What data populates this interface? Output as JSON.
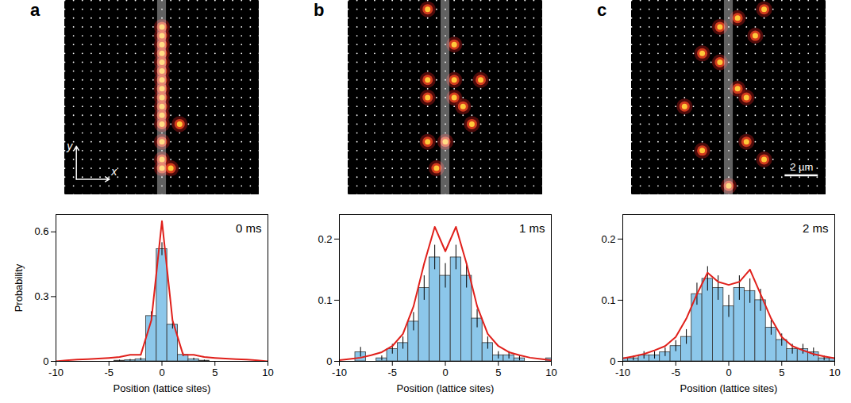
{
  "chart_data": [
    {
      "type": "histogram",
      "panel": "a",
      "annotation": "0 ms",
      "x_label": "Position (lattice sites)",
      "y_label": "Probability",
      "color": "#8cc7ea",
      "bins": [
        -10.5,
        -9.5,
        -8.5,
        -7.5,
        -6.5,
        -5.5,
        -4.5,
        -3.5,
        -2.5,
        -1.5,
        -0.5,
        0.5,
        1.5,
        2.5,
        3.5,
        4.5,
        5.5,
        6.5,
        7.5,
        8.5,
        9.5,
        10.5
      ],
      "counts": [
        0,
        0,
        0,
        0,
        0,
        0,
        0.003,
        0.005,
        0.01,
        0.21,
        0.52,
        0.17,
        0.03,
        0.01,
        0.003,
        0,
        0,
        0,
        0,
        0,
        0
      ],
      "errors": [
        0,
        0,
        0,
        0,
        0,
        0,
        0.003,
        0.004,
        0.006,
        0.02,
        0.03,
        0.02,
        0.008,
        0.005,
        0.003,
        0,
        0,
        0,
        0,
        0,
        0
      ],
      "theory": {
        "color": "#e0201b",
        "x": [
          -10,
          -9,
          -8,
          -7,
          -6,
          -5,
          -4,
          -3,
          -2,
          -1,
          0,
          1,
          2,
          3,
          4,
          5,
          6,
          7,
          8,
          9,
          10
        ],
        "values": [
          0,
          0.005,
          0.008,
          0.01,
          0.013,
          0.016,
          0.02,
          0.03,
          0.03,
          0.19,
          0.65,
          0.19,
          0.03,
          0.03,
          0.02,
          0.016,
          0.013,
          0.01,
          0.008,
          0.005,
          0
        ]
      },
      "xlim": [
        -10,
        10
      ],
      "xticks": [
        -10,
        -5,
        0,
        5,
        10
      ],
      "ylim": [
        0,
        0.68
      ],
      "yticks": [
        0,
        0.3,
        0.6
      ],
      "image": {
        "xlim": [
          -11,
          11
        ],
        "ylim": [
          -11,
          11
        ],
        "stripe_x": 0,
        "axis_labels": [
          "x",
          "y"
        ],
        "atoms": [
          [
            0,
            8
          ],
          [
            0,
            7
          ],
          [
            0,
            6
          ],
          [
            0,
            5
          ],
          [
            0,
            4
          ],
          [
            0,
            3
          ],
          [
            0,
            2
          ],
          [
            0,
            1
          ],
          [
            0,
            0
          ],
          [
            0,
            -1
          ],
          [
            0,
            -2
          ],
          [
            0,
            -3
          ],
          [
            0,
            -5
          ],
          [
            0,
            -7
          ],
          [
            0,
            -8
          ],
          [
            2,
            -3
          ],
          [
            1,
            -8
          ]
        ]
      }
    },
    {
      "type": "histogram",
      "panel": "b",
      "annotation": "1 ms",
      "x_label": "Position (lattice sites)",
      "color": "#8cc7ea",
      "bins": [
        -10.5,
        -9.5,
        -8.5,
        -7.5,
        -6.5,
        -5.5,
        -4.5,
        -3.5,
        -2.5,
        -1.5,
        -0.5,
        0.5,
        1.5,
        2.5,
        3.5,
        4.5,
        5.5,
        6.5,
        7.5,
        8.5,
        9.5,
        10.5
      ],
      "counts": [
        0,
        0,
        0.015,
        0,
        0.005,
        0.02,
        0.03,
        0.065,
        0.12,
        0.17,
        0.14,
        0.17,
        0.14,
        0.07,
        0.03,
        0.01,
        0.01,
        0.005,
        0,
        0,
        0.005
      ],
      "errors": [
        0,
        0,
        0.008,
        0,
        0.004,
        0.008,
        0.01,
        0.015,
        0.02,
        0.02,
        0.02,
        0.02,
        0.02,
        0.015,
        0.01,
        0.006,
        0.006,
        0.004,
        0,
        0,
        0.004
      ],
      "theory": {
        "color": "#e0201b",
        "x": [
          -10,
          -9,
          -8,
          -7,
          -6,
          -5,
          -4,
          -3,
          -2,
          -1,
          0,
          1,
          2,
          3,
          4,
          5,
          6,
          7,
          8,
          9,
          10
        ],
        "values": [
          0.002,
          0.004,
          0.006,
          0.01,
          0.015,
          0.025,
          0.045,
          0.09,
          0.16,
          0.22,
          0.18,
          0.22,
          0.16,
          0.09,
          0.045,
          0.025,
          0.015,
          0.01,
          0.006,
          0.004,
          0.002
        ]
      },
      "xlim": [
        -10,
        10
      ],
      "xticks": [
        -10,
        -5,
        0,
        5,
        10
      ],
      "ylim": [
        0,
        0.24
      ],
      "yticks": [
        0,
        0.1,
        0.2
      ],
      "image": {
        "xlim": [
          -11,
          11
        ],
        "ylim": [
          -11,
          11
        ],
        "stripe_x": 0,
        "atoms": [
          [
            -2,
            10
          ],
          [
            1,
            6
          ],
          [
            -2,
            2
          ],
          [
            1,
            2
          ],
          [
            4,
            2
          ],
          [
            1,
            0
          ],
          [
            -2,
            0
          ],
          [
            2,
            -1
          ],
          [
            3,
            -3
          ],
          [
            -2,
            -5
          ],
          [
            0,
            -5
          ],
          [
            -1,
            -8
          ]
        ]
      }
    },
    {
      "type": "histogram",
      "panel": "c",
      "annotation": "2 ms",
      "x_label": "Position (lattice sites)",
      "color": "#8cc7ea",
      "bins": [
        -10.5,
        -9.5,
        -8.5,
        -7.5,
        -6.5,
        -5.5,
        -4.5,
        -3.5,
        -2.5,
        -1.5,
        -0.5,
        0.5,
        1.5,
        2.5,
        3.5,
        4.5,
        5.5,
        6.5,
        7.5,
        8.5,
        9.5,
        10.5
      ],
      "counts": [
        0.005,
        0.005,
        0.01,
        0.01,
        0.015,
        0.025,
        0.04,
        0.11,
        0.135,
        0.12,
        0.09,
        0.12,
        0.115,
        0.1,
        0.055,
        0.035,
        0.02,
        0.02,
        0.015,
        0.005,
        0.005
      ],
      "errors": [
        0.004,
        0.004,
        0.006,
        0.006,
        0.007,
        0.009,
        0.012,
        0.018,
        0.02,
        0.02,
        0.018,
        0.02,
        0.02,
        0.018,
        0.012,
        0.01,
        0.008,
        0.008,
        0.007,
        0.004,
        0.004
      ],
      "theory": {
        "color": "#e0201b",
        "x": [
          -10,
          -9,
          -8,
          -7,
          -6,
          -5,
          -4,
          -3,
          -2,
          -1,
          0,
          1,
          2,
          3,
          4,
          5,
          6,
          7,
          8,
          9,
          10
        ],
        "values": [
          0.005,
          0.008,
          0.012,
          0.018,
          0.025,
          0.04,
          0.07,
          0.11,
          0.145,
          0.13,
          0.125,
          0.13,
          0.15,
          0.11,
          0.07,
          0.04,
          0.025,
          0.018,
          0.012,
          0.008,
          0.005
        ]
      },
      "xlim": [
        -10,
        10
      ],
      "xticks": [
        -10,
        -5,
        0,
        5,
        10
      ],
      "ylim": [
        0,
        0.24
      ],
      "yticks": [
        0,
        0.1,
        0.2
      ],
      "image": {
        "xlim": [
          -11,
          11
        ],
        "ylim": [
          -11,
          11
        ],
        "stripe_x": 0,
        "scale_bar": {
          "label": "2 µm",
          "length_sites": 3.76
        },
        "atoms": [
          [
            4,
            10
          ],
          [
            -1,
            8
          ],
          [
            1,
            9
          ],
          [
            3,
            7
          ],
          [
            -3,
            5
          ],
          [
            -1,
            4
          ],
          [
            1,
            1
          ],
          [
            2,
            0
          ],
          [
            -5,
            -1
          ],
          [
            -3,
            -6
          ],
          [
            2,
            -5
          ],
          [
            4,
            -7
          ],
          [
            0,
            -10
          ]
        ]
      }
    }
  ]
}
